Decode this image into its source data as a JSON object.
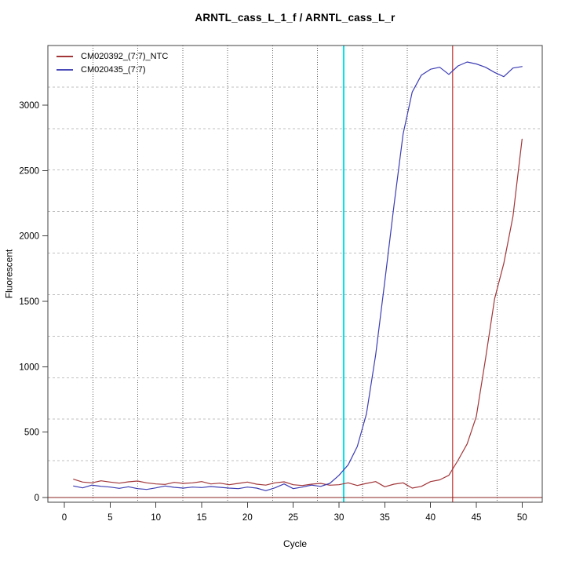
{
  "title": "ARNTL_cass_L_1_f / ARNTL_cass_L_r",
  "legend": {
    "items": [
      {
        "label": "CM020392_(7:7)_NTC",
        "color": "#a13538"
      },
      {
        "label": "CM020435_(7:7)",
        "color": "#4a4ab8"
      }
    ]
  },
  "colors": {
    "ntc_series": "#a13538",
    "sample_series": "#3c3cb4",
    "zero_baseline": "#8b2323",
    "cyan_threshold_line": "#00e5ee",
    "red_ct_line": "#cd5c5c",
    "v_grid": "#5a5a5a",
    "h_grid": "#bfbfbf",
    "axis": "#404040",
    "text": "#000000"
  },
  "chart_data": {
    "type": "line",
    "title": "ARNTL_cass_L_1_f / ARNTL_cass_L_r",
    "xlabel": "Cycle",
    "ylabel": "Fluorescent",
    "xlim": [
      -1.8,
      52.2
    ],
    "ylim": [
      -36,
      3456
    ],
    "x_ticks": [
      0,
      5,
      10,
      15,
      20,
      25,
      30,
      35,
      40,
      45,
      50
    ],
    "y_ticks": [
      0,
      500,
      1000,
      1500,
      2000,
      2500,
      3000
    ],
    "grid": {
      "style": "dotted",
      "x_divisions": 11,
      "y_divisions": 11
    },
    "legend_position": "topleft",
    "x": [
      1,
      2,
      3,
      4,
      5,
      6,
      7,
      8,
      9,
      10,
      11,
      12,
      13,
      14,
      15,
      16,
      17,
      18,
      19,
      20,
      21,
      22,
      23,
      24,
      25,
      26,
      27,
      28,
      29,
      30,
      31,
      32,
      33,
      34,
      35,
      36,
      37,
      38,
      39,
      40,
      41,
      42,
      43,
      44,
      45,
      46,
      47,
      48,
      49,
      50
    ],
    "series": [
      {
        "name": "CM020392_(7:7)_NTC",
        "color": "#a13538",
        "values": [
          140,
          118,
          112,
          128,
          118,
          110,
          120,
          126,
          112,
          104,
          100,
          116,
          108,
          112,
          122,
          104,
          110,
          98,
          108,
          118,
          102,
          95,
          112,
          120,
          98,
          92,
          102,
          108,
          94,
          98,
          112,
          92,
          108,
          122,
          82,
          102,
          112,
          72,
          85,
          122,
          135,
          170,
          285,
          410,
          620,
          1060,
          1520,
          1790,
          2150,
          2740
        ]
      },
      {
        "name": "CM020435_(7:7)",
        "color": "#3c3cb4",
        "values": [
          88,
          74,
          95,
          86,
          80,
          70,
          82,
          68,
          62,
          74,
          88,
          78,
          72,
          80,
          76,
          84,
          78,
          72,
          68,
          80,
          72,
          52,
          74,
          104,
          68,
          80,
          95,
          85,
          108,
          170,
          250,
          390,
          640,
          1090,
          1650,
          2230,
          2780,
          3100,
          3230,
          3275,
          3290,
          3235,
          3300,
          3330,
          3315,
          3290,
          3250,
          3218,
          3284,
          3295
        ]
      }
    ],
    "vlines": [
      {
        "x": 30.5,
        "color": "#00e5ee",
        "width": 2,
        "style": "solid"
      },
      {
        "x": 42.4,
        "color": "#cd5c5c",
        "width": 1.2,
        "style": "solid"
      }
    ],
    "hlines": [
      {
        "y": 0,
        "color": "#8b2323",
        "width": 1.2,
        "style": "solid"
      }
    ]
  }
}
